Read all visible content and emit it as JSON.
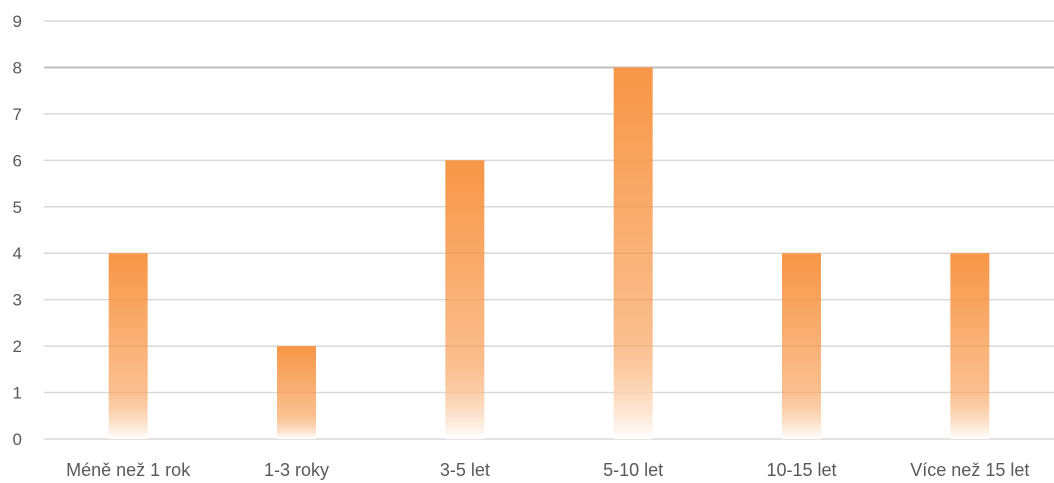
{
  "chart_data": {
    "type": "bar",
    "categories": [
      "Méně než 1 rok",
      "1-3 roky",
      "3-5 let",
      "5-10 let",
      "10-15 let",
      "Více než 15 let"
    ],
    "values": [
      4,
      2,
      6,
      8,
      4,
      4
    ],
    "ylim": [
      0,
      9
    ],
    "yticks": [
      0,
      1,
      2,
      3,
      4,
      5,
      6,
      7,
      8,
      9
    ],
    "grid": true,
    "legend": "none",
    "colors": {
      "bar_top": "#f79646",
      "bar_bottom": "#ffffff",
      "grid": "#d9d9d9",
      "text": "#595959"
    }
  }
}
